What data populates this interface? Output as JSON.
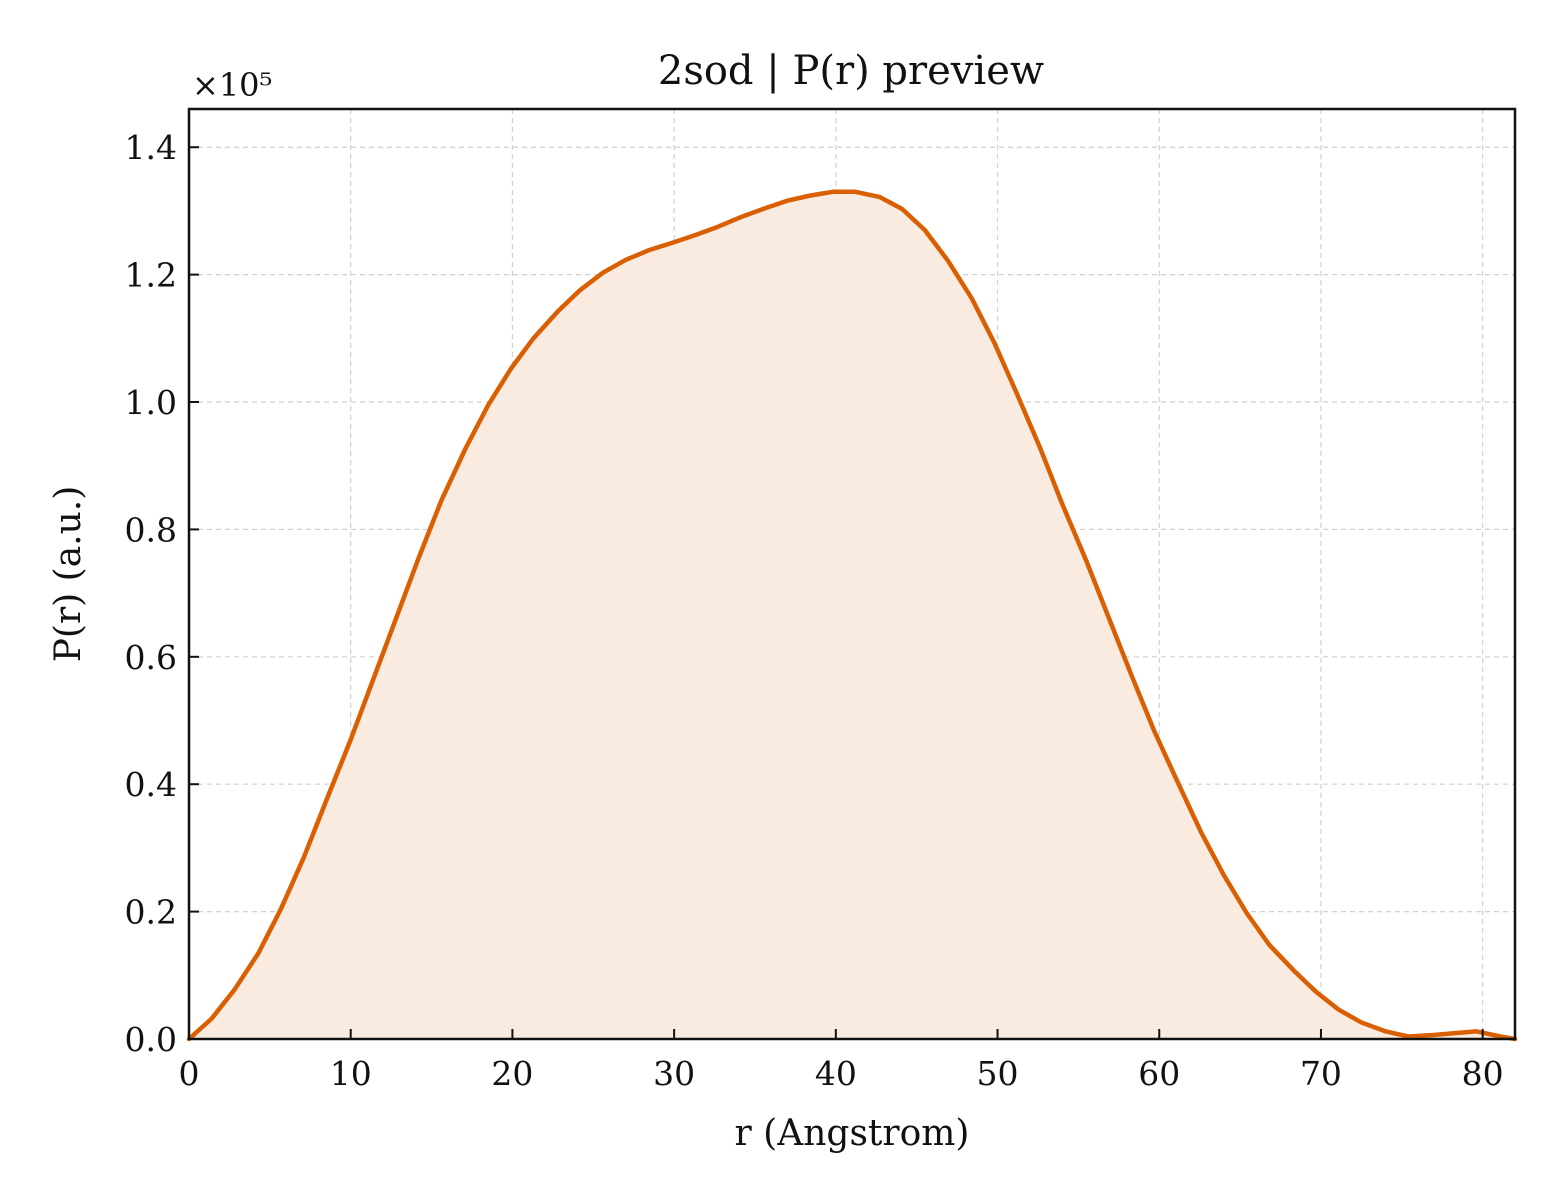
{
  "chart_data": {
    "type": "area",
    "title": "2sod | P(r) preview",
    "xlabel": "r (Angstrom)",
    "ylabel": "P(r) (a.u.)",
    "y_multiplier": "×10⁵",
    "xlim": [
      0,
      82
    ],
    "ylim": [
      0,
      146000
    ],
    "x_ticks": [
      0,
      10,
      20,
      30,
      40,
      50,
      60,
      70,
      80
    ],
    "x_tick_labels": [
      "0",
      "10",
      "20",
      "30",
      "40",
      "50",
      "60",
      "70",
      "80"
    ],
    "y_ticks": [
      0,
      20000,
      40000,
      60000,
      80000,
      100000,
      120000,
      140000
    ],
    "y_tick_labels": [
      "0.0",
      "0.2",
      "0.4",
      "0.6",
      "0.8",
      "1.0",
      "1.2",
      "1.4"
    ],
    "grid": true,
    "colors": {
      "line": "#d95f02",
      "fill": "#f9ebe0"
    },
    "series": [
      {
        "x": [
          0,
          1.4,
          2.8,
          4.3,
          5.7,
          7.1,
          8.5,
          10.0,
          11.4,
          12.8,
          14.2,
          15.6,
          17.1,
          18.5,
          19.9,
          21.3,
          22.8,
          24.2,
          25.6,
          27.0,
          28.4,
          29.9,
          31.3,
          32.7,
          34.1,
          35.6,
          37.0,
          38.4,
          39.8,
          41.2,
          42.7,
          44.1,
          45.5,
          46.9,
          48.4,
          49.8,
          51.2,
          52.6,
          54.0,
          55.5,
          56.9,
          58.3,
          59.7,
          61.2,
          62.6,
          64.0,
          65.4,
          66.8,
          68.3,
          69.7,
          71.1,
          72.5,
          74.0,
          75.4,
          76.8,
          78.2,
          79.6,
          81.1,
          82.0
        ],
        "y": [
          0,
          3200,
          7700,
          13500,
          20500,
          28500,
          37500,
          47000,
          56500,
          66000,
          75500,
          84500,
          92700,
          99500,
          105200,
          110000,
          114200,
          117600,
          120300,
          122300,
          123800,
          125000,
          126200,
          127500,
          129000,
          130400,
          131600,
          132400,
          133000,
          133000,
          132200,
          130300,
          127000,
          122300,
          116300,
          109300,
          101300,
          93000,
          84000,
          75000,
          66000,
          57000,
          48300,
          40000,
          32400,
          25700,
          19800,
          14800,
          10800,
          7400,
          4600,
          2600,
          1200,
          400,
          600,
          900,
          1200,
          400,
          0
        ]
      }
    ]
  }
}
